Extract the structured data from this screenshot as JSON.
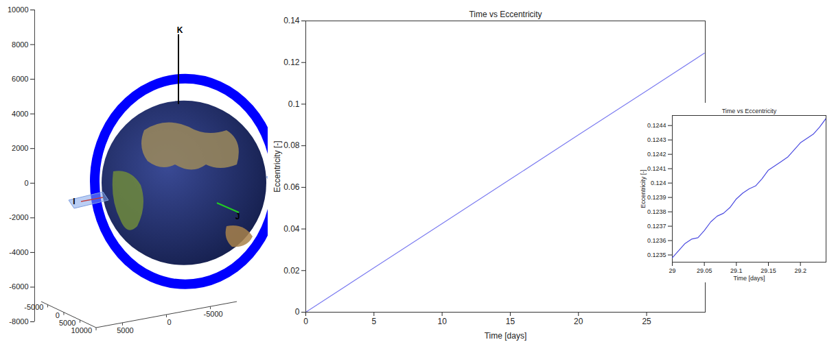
{
  "chart_data": [
    {
      "type": "orbit3d",
      "axis_labels": [
        "K",
        "I",
        "J"
      ],
      "color": "#0000ff",
      "zlim": [
        -8000,
        10000
      ],
      "zticks": [
        -8000,
        -6000,
        -4000,
        -2000,
        0,
        2000,
        4000,
        6000,
        8000,
        10000
      ],
      "xlim": [
        -7000,
        10000
      ],
      "xticks": [
        -5000,
        0,
        5000,
        10000
      ],
      "ylim": [
        8000,
        -8000
      ],
      "yticks": [
        5000,
        0,
        -5000
      ]
    },
    {
      "type": "line",
      "title": "Time vs Eccentricity",
      "x_label": "Time [days]",
      "y_label": "Eccentricity [-]",
      "x": [
        0,
        5,
        10,
        15,
        20,
        25,
        29.24
      ],
      "values": [
        0,
        0.0213,
        0.0426,
        0.0639,
        0.0852,
        0.1064,
        0.1245
      ],
      "color": "#7b7bf0",
      "xlim": [
        0,
        29.3
      ],
      "xticks": [
        0,
        5,
        10,
        15,
        20,
        25
      ],
      "ylim": [
        0,
        0.14
      ],
      "yticks": [
        0,
        0.02,
        0.04,
        0.06,
        0.08,
        0.1,
        0.12,
        0.14
      ],
      "grid": false
    },
    {
      "type": "line",
      "title": "Time vs Eccentricity",
      "x_label": "Time [days]",
      "y_label": "Eccentricity [-]",
      "x": [
        29.0,
        29.01,
        29.02,
        29.03,
        29.04,
        29.05,
        29.06,
        29.07,
        29.08,
        29.09,
        29.1,
        29.11,
        29.12,
        29.13,
        29.14,
        29.15,
        29.16,
        29.17,
        29.18,
        29.19,
        29.2,
        29.21,
        29.22,
        29.23,
        29.24
      ],
      "values": [
        0.12348,
        0.12353,
        0.12358,
        0.12361,
        0.12362,
        0.12367,
        0.12373,
        0.12377,
        0.12379,
        0.12383,
        0.12389,
        0.12393,
        0.12396,
        0.12398,
        0.12403,
        0.12409,
        0.12412,
        0.12415,
        0.12418,
        0.12423,
        0.12428,
        0.12431,
        0.12434,
        0.12439,
        0.12445
      ],
      "color": "#4a4ae0",
      "xlim": [
        29,
        29.24
      ],
      "xticks": [
        29,
        29.05,
        29.1,
        29.15,
        29.2
      ],
      "ylim": [
        0.12345,
        0.12447
      ],
      "yticks": [
        0.1235,
        0.1236,
        0.1237,
        0.1238,
        0.1239,
        0.124,
        0.1241,
        0.1242,
        0.1243,
        0.1244
      ],
      "grid": false
    }
  ]
}
